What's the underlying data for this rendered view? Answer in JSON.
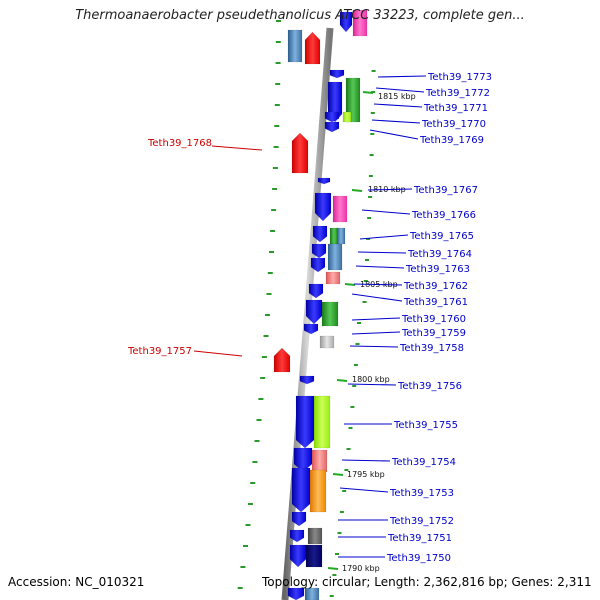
{
  "title": "Thermoanaerobacter pseudethanolicus ATCC 33223, complete gen...",
  "accession_label": "Accession: NC_010321",
  "topology_label": "Topology: circular; Length: 2,362,816 bp; Genes: 2,311",
  "colors": {
    "label_blue": "#0000cc",
    "label_red": "#cc0000",
    "tick_green": "#22aa22"
  },
  "kbp_marks": [
    "1815 kbp",
    "1810 kbp",
    "1805 kbp",
    "1800 kbp",
    "1795 kbp",
    "1790 kbp"
  ],
  "genes_right": [
    "Teth39_1773",
    "Teth39_1772",
    "Teth39_1771",
    "Teth39_1770",
    "Teth39_1769",
    "Teth39_1767",
    "Teth39_1766",
    "Teth39_1765",
    "Teth39_1764",
    "Teth39_1763",
    "Teth39_1762",
    "Teth39_1761",
    "Teth39_1760",
    "Teth39_1759",
    "Teth39_1758",
    "Teth39_1756",
    "Teth39_1755",
    "Teth39_1754",
    "Teth39_1753",
    "Teth39_1752",
    "Teth39_1751",
    "Teth39_1750"
  ],
  "genes_left": [
    "Teth39_1768",
    "Teth39_1757"
  ]
}
